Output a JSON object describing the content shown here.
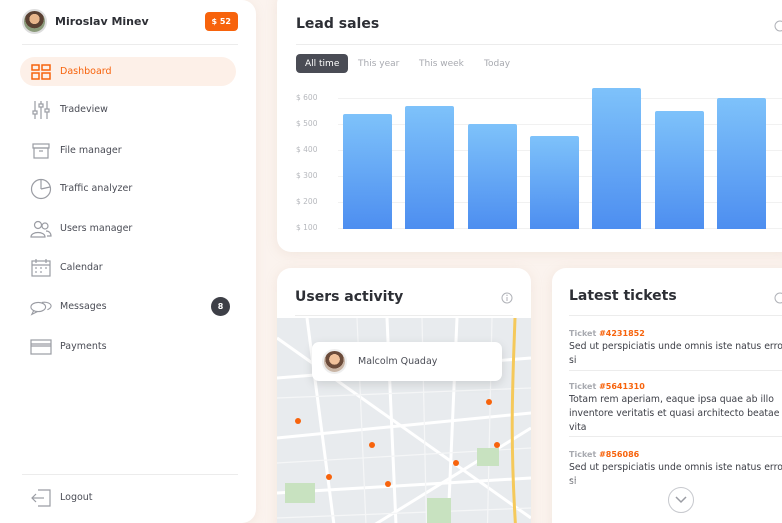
{
  "profile": {
    "name": "Miroslav Minev",
    "balance": "$ 52"
  },
  "nav": [
    {
      "id": "dashboard",
      "label": "Dashboard",
      "icon": "dashboard-icon",
      "active": true
    },
    {
      "id": "tradeview",
      "label": "Tradeview",
      "icon": "sliders-icon"
    },
    {
      "id": "file-manager",
      "label": "File manager",
      "icon": "archive-icon"
    },
    {
      "id": "traffic-analyzer",
      "label": "Traffic analyzer",
      "icon": "pie-chart-icon"
    },
    {
      "id": "users-manager",
      "label": "Users manager",
      "icon": "users-icon"
    },
    {
      "id": "calendar",
      "label": "Calendar",
      "icon": "calendar-icon"
    },
    {
      "id": "messages",
      "label": "Messages",
      "icon": "chat-icon",
      "badge": "8"
    },
    {
      "id": "payments",
      "label": "Payments",
      "icon": "credit-card-icon"
    }
  ],
  "logout": {
    "label": "Logout"
  },
  "lead_sales": {
    "title": "Lead sales",
    "filters": [
      "All time",
      "This year",
      "This week",
      "Today"
    ],
    "active_filter": "All time"
  },
  "chart_data": {
    "type": "bar",
    "title": "Lead sales",
    "ytick_labels": [
      "$ 600",
      "$ 500",
      "$ 400",
      "$ 300",
      "$ 200",
      "$ 100"
    ],
    "ylim": [
      100,
      600
    ],
    "values": [
      540,
      570,
      500,
      455,
      640,
      550,
      600
    ],
    "grid": true,
    "colors": {
      "bar_top": "#7ec2fa",
      "bar_bottom": "#4d8ef0"
    }
  },
  "users_activity": {
    "title": "Users activity",
    "popup_name": "Malcolm Quaday"
  },
  "tickets": {
    "title": "Latest tickets",
    "prefix": "Ticket",
    "items": [
      {
        "id": "#4231852",
        "text": "Sed ut perspiciatis unde omnis iste natus error si"
      },
      {
        "id": "#5641310",
        "text": "Totam rem aperiam, eaque ipsa quae ab illo inventore veritatis et quasi architecto beatae vita"
      },
      {
        "id": "#856086",
        "text": "Sed ut perspiciatis unde omnis iste natus error si"
      }
    ]
  },
  "colors": {
    "accent": "#f7630c",
    "dark": "#3d3f47",
    "background": "#fbf3ee"
  }
}
